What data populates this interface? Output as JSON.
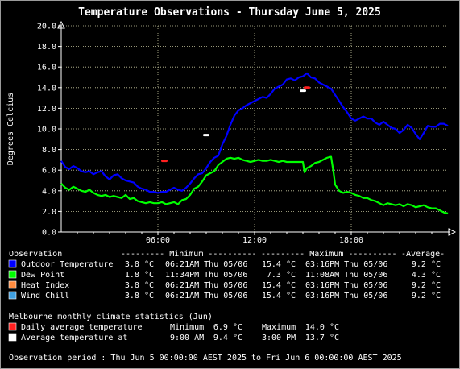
{
  "title": "Temperature Observations - Thursday June 5, 2025",
  "chart_data": {
    "type": "line",
    "title": "Temperature Observations - Thursday June 5, 2025",
    "xlabel": "",
    "ylabel": "Degrees Celcius",
    "xlim": [
      0,
      24
    ],
    "ylim": [
      0,
      20
    ],
    "yticks": [
      "0.0",
      "2.0",
      "4.0",
      "6.0",
      "8.0",
      "10.0",
      "12.0",
      "14.0",
      "16.0",
      "18.0",
      "20.0"
    ],
    "xticks": [
      {
        "x": 6,
        "label": "06:00"
      },
      {
        "x": 12,
        "label": "12:00"
      },
      {
        "x": 18,
        "label": "18:00"
      }
    ],
    "grid": true,
    "series": [
      {
        "name": "Outdoor Temperature",
        "color": "#0000ff",
        "x": [
          0,
          0.25,
          0.5,
          0.75,
          1.0,
          1.25,
          1.5,
          1.75,
          2.0,
          2.25,
          2.5,
          2.75,
          3.0,
          3.25,
          3.5,
          3.75,
          4.0,
          4.25,
          4.5,
          4.75,
          5.0,
          5.25,
          5.5,
          5.75,
          6.0,
          6.25,
          6.5,
          6.75,
          7.0,
          7.25,
          7.5,
          7.75,
          8.0,
          8.25,
          8.5,
          8.75,
          9.0,
          9.25,
          9.5,
          9.75,
          10.0,
          10.25,
          10.5,
          10.75,
          11.0,
          11.25,
          11.5,
          11.75,
          12.0,
          12.25,
          12.5,
          12.75,
          13.0,
          13.25,
          13.5,
          13.75,
          14.0,
          14.25,
          14.5,
          14.75,
          15.0,
          15.25,
          15.5,
          15.75,
          16.0,
          16.25,
          16.5,
          16.75,
          17.0,
          17.25,
          17.5,
          17.75,
          18.0,
          18.25,
          18.5,
          18.75,
          19.0,
          19.25,
          19.5,
          19.75,
          20.0,
          20.25,
          20.5,
          20.75,
          21.0,
          21.25,
          21.5,
          21.75,
          22.0,
          22.25,
          22.5,
          22.75,
          23.0,
          23.25,
          23.5,
          23.75,
          24.0
        ],
        "values": [
          6.9,
          6.3,
          6.1,
          6.4,
          6.2,
          5.9,
          5.8,
          5.9,
          5.6,
          5.8,
          5.9,
          5.4,
          5.1,
          5.5,
          5.6,
          5.2,
          5.0,
          4.9,
          4.8,
          4.4,
          4.2,
          4.1,
          3.9,
          3.9,
          3.8,
          3.9,
          3.9,
          4.1,
          4.3,
          4.1,
          4.0,
          4.3,
          4.7,
          5.2,
          5.6,
          5.7,
          6.2,
          6.8,
          7.2,
          7.4,
          8.5,
          9.3,
          10.4,
          11.3,
          11.8,
          12.0,
          12.3,
          12.5,
          12.7,
          12.9,
          13.1,
          13.0,
          13.4,
          13.9,
          14.1,
          14.3,
          14.8,
          14.9,
          14.7,
          15.0,
          15.1,
          15.4,
          15.0,
          14.9,
          14.5,
          14.3,
          14.1,
          13.9,
          13.3,
          12.7,
          12.1,
          11.6,
          11.0,
          10.8,
          11.0,
          11.2,
          11.0,
          11.0,
          10.6,
          10.4,
          10.7,
          10.4,
          10.1,
          10.0,
          9.6,
          9.9,
          10.4,
          10.1,
          9.5,
          9.0,
          9.6,
          10.3,
          10.2,
          10.2,
          10.5,
          10.5,
          10.3
        ],
        "minimum": "3.8 °C",
        "minimum_time": "06:21AM Thu 05/06",
        "maximum": "15.4 °C",
        "maximum_time": "03:16PM Thu 05/06",
        "average": "9.2 °C"
      },
      {
        "name": "Dew Point",
        "color": "#00ff00",
        "x": [
          0,
          0.25,
          0.5,
          0.75,
          1.0,
          1.25,
          1.5,
          1.75,
          2.0,
          2.25,
          2.5,
          2.75,
          3.0,
          3.25,
          3.5,
          3.75,
          4.0,
          4.25,
          4.5,
          4.75,
          5.0,
          5.25,
          5.5,
          5.75,
          6.0,
          6.25,
          6.5,
          6.75,
          7.0,
          7.25,
          7.5,
          7.75,
          8.0,
          8.25,
          8.5,
          8.75,
          9.0,
          9.25,
          9.5,
          9.75,
          10.0,
          10.25,
          10.5,
          10.75,
          11.0,
          11.25,
          11.5,
          11.75,
          12.0,
          12.25,
          12.5,
          12.75,
          13.0,
          13.25,
          13.5,
          13.75,
          14.0,
          14.25,
          14.5,
          14.75,
          15.0,
          15.1,
          15.25,
          15.5,
          15.75,
          16.0,
          16.25,
          16.5,
          16.75,
          16.9,
          17.0,
          17.25,
          17.5,
          17.75,
          18.0,
          18.25,
          18.5,
          18.75,
          19.0,
          19.25,
          19.5,
          19.75,
          20.0,
          20.25,
          20.5,
          20.75,
          21.0,
          21.25,
          21.5,
          21.75,
          22.0,
          22.25,
          22.5,
          22.75,
          23.0,
          23.25,
          23.5,
          23.75,
          24.0
        ],
        "values": [
          4.7,
          4.3,
          4.1,
          4.4,
          4.2,
          4.0,
          3.9,
          4.1,
          3.8,
          3.6,
          3.5,
          3.6,
          3.4,
          3.5,
          3.4,
          3.3,
          3.6,
          3.2,
          3.3,
          3.0,
          2.9,
          2.8,
          2.9,
          2.8,
          2.8,
          2.9,
          2.7,
          2.8,
          2.9,
          2.7,
          3.1,
          3.2,
          3.6,
          4.2,
          4.4,
          4.9,
          5.5,
          5.7,
          5.9,
          6.5,
          6.8,
          7.1,
          7.2,
          7.1,
          7.2,
          7.0,
          6.9,
          6.8,
          6.9,
          7.0,
          6.9,
          6.9,
          7.0,
          6.9,
          6.8,
          6.9,
          6.8,
          6.8,
          6.8,
          6.8,
          6.8,
          5.8,
          6.2,
          6.4,
          6.7,
          6.8,
          7.0,
          7.2,
          7.3,
          5.8,
          4.6,
          4.0,
          3.8,
          3.9,
          3.8,
          3.6,
          3.5,
          3.3,
          3.3,
          3.1,
          3.0,
          2.8,
          2.6,
          2.8,
          2.7,
          2.6,
          2.7,
          2.5,
          2.7,
          2.6,
          2.4,
          2.5,
          2.6,
          2.4,
          2.3,
          2.3,
          2.1,
          1.9,
          1.8
        ],
        "minimum": "1.8 °C",
        "minimum_time": "11:34PM Thu 05/06",
        "maximum": "7.3 °C",
        "maximum_time": "11:08AM Thu 05/06",
        "average": "4.3 °C"
      }
    ],
    "markers": [
      {
        "name": "Daily average temperature minimum",
        "x": 6.4,
        "value": 6.9,
        "color": "#ff2020"
      },
      {
        "name": "Daily average temperature maximum",
        "x": 15.25,
        "value": 14.0,
        "color": "#ff2020"
      },
      {
        "name": "Average temperature at 9:00 AM",
        "x": 9.0,
        "value": 9.4,
        "color": "#ffffff"
      },
      {
        "name": "Average temperature at 3:00 PM",
        "x": 15.0,
        "value": 13.7,
        "color": "#ffffff"
      }
    ]
  },
  "table": {
    "header": {
      "observation": "Observation",
      "minimum": "--------- Minimum ----------",
      "maximum": "--------- Maximum ----------",
      "average": "-Average-"
    },
    "rows": [
      {
        "label": "Outdoor Temperature",
        "color": "#0000ff",
        "min": "3.8 °C",
        "min_time": "06:21AM Thu 05/06",
        "max": "15.4 °C",
        "max_time": "03:16PM Thu 05/06",
        "avg": "9.2 °C"
      },
      {
        "label": "Dew Point",
        "color": "#00ff00",
        "min": "1.8 °C",
        "min_time": "11:34PM Thu 05/06",
        "max": "7.3 °C",
        "max_time": "11:08AM Thu 05/06",
        "avg": "4.3 °C"
      },
      {
        "label": "Heat Index",
        "color": "#ff8c40",
        "min": "3.8 °C",
        "min_time": "06:21AM Thu 05/06",
        "max": "15.4 °C",
        "max_time": "03:16PM Thu 05/06",
        "avg": "9.2 °C"
      },
      {
        "label": "Wind Chill",
        "color": "#40a0e0",
        "min": "3.8 °C",
        "min_time": "06:21AM Thu 05/06",
        "max": "15.4 °C",
        "max_time": "03:16PM Thu 05/06",
        "avg": "9.2 °C"
      }
    ]
  },
  "climate": {
    "heading": "Melbourne monthly climate statistics (Jun)",
    "rows": [
      {
        "label": "Daily average temperature",
        "color": "#ff2020",
        "a_label": "Minimum",
        "a_value": "6.9 °C",
        "b_label": "Maximum",
        "b_value": "14.0 °C"
      },
      {
        "label": "Average temperature at",
        "color": "#ffffff",
        "a_label": "9:00 AM",
        "a_value": "9.4 °C",
        "b_label": "3:00 PM",
        "b_value": "13.7 °C"
      }
    ]
  },
  "period": "Observation period : Thu Jun 5 00:00:00 AEST 2025 to Fri Jun 6 00:00:00 AEST 2025"
}
